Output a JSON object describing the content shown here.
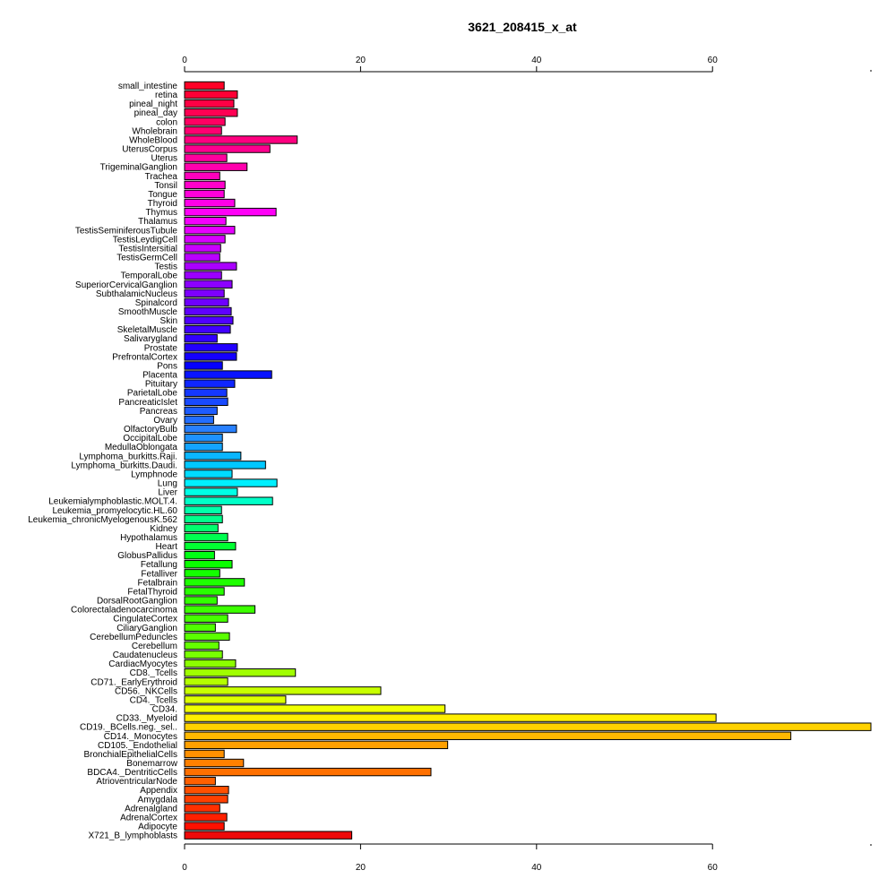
{
  "chart_data": {
    "type": "bar",
    "orientation": "horizontal",
    "title": "3621_208415_x_at",
    "xlabel": "",
    "ylabel": "",
    "xlim": [
      0,
      78
    ],
    "x_ticks": [
      0,
      20,
      40,
      60
    ],
    "x_tick_labels": [
      "0",
      "20",
      "40",
      "60"
    ],
    "grid": false,
    "legend": "none",
    "bar_outline_color": "#000000",
    "bars": [
      {
        "category": "small_intestine",
        "value": 4.5,
        "color": "#ff0026"
      },
      {
        "category": "retina",
        "value": 6.0,
        "color": "#ff0035"
      },
      {
        "category": "pineal_night",
        "value": 5.6,
        "color": "#ff0044"
      },
      {
        "category": "pineal_day",
        "value": 6.0,
        "color": "#ff0053"
      },
      {
        "category": "colon",
        "value": 4.6,
        "color": "#ff0062"
      },
      {
        "category": "Wholebrain",
        "value": 4.2,
        "color": "#ff0071"
      },
      {
        "category": "WholeBlood",
        "value": 12.8,
        "color": "#ff0080"
      },
      {
        "category": "UterusCorpus",
        "value": 9.7,
        "color": "#ff008f"
      },
      {
        "category": "Uterus",
        "value": 4.8,
        "color": "#ff009e"
      },
      {
        "category": "TrigeminalGanglion",
        "value": 7.1,
        "color": "#ff00ad"
      },
      {
        "category": "Trachea",
        "value": 4.0,
        "color": "#ff00bc"
      },
      {
        "category": "Tonsil",
        "value": 4.6,
        "color": "#ff00cb"
      },
      {
        "category": "Tongue",
        "value": 4.5,
        "color": "#ff00da"
      },
      {
        "category": "Thyroid",
        "value": 5.7,
        "color": "#ff00e9"
      },
      {
        "category": "Thymus",
        "value": 10.4,
        "color": "#ff00f8"
      },
      {
        "category": "Thalamus",
        "value": 4.7,
        "color": "#f500ff"
      },
      {
        "category": "TestisSeminiferousTubule",
        "value": 5.7,
        "color": "#e600ff"
      },
      {
        "category": "TestisLeydigCell",
        "value": 4.6,
        "color": "#d700ff"
      },
      {
        "category": "TestisIntersitial",
        "value": 4.1,
        "color": "#c800ff"
      },
      {
        "category": "TestisGermCell",
        "value": 4.0,
        "color": "#b900ff"
      },
      {
        "category": "Testis",
        "value": 5.9,
        "color": "#aa00ff"
      },
      {
        "category": "TemporalLobe",
        "value": 4.2,
        "color": "#9b00ff"
      },
      {
        "category": "SuperiorCervicalGanglion",
        "value": 5.4,
        "color": "#8c00ff"
      },
      {
        "category": "SubthalamicNucleus",
        "value": 4.5,
        "color": "#7d00ff"
      },
      {
        "category": "Spinalcord",
        "value": 5.0,
        "color": "#6e00ff"
      },
      {
        "category": "SmoothMuscle",
        "value": 5.3,
        "color": "#5f00ff"
      },
      {
        "category": "Skin",
        "value": 5.5,
        "color": "#5000ff"
      },
      {
        "category": "SkeletalMuscle",
        "value": 5.2,
        "color": "#4100ff"
      },
      {
        "category": "Salivarygland",
        "value": 3.7,
        "color": "#3200ff"
      },
      {
        "category": "Prostate",
        "value": 6.0,
        "color": "#2300ff"
      },
      {
        "category": "PrefrontalCortex",
        "value": 5.9,
        "color": "#1400ff"
      },
      {
        "category": "Pons",
        "value": 4.3,
        "color": "#0500ff"
      },
      {
        "category": "Placenta",
        "value": 9.9,
        "color": "#0a14ff"
      },
      {
        "category": "Pituitary",
        "value": 5.7,
        "color": "#0f26ff"
      },
      {
        "category": "ParietalLobe",
        "value": 4.8,
        "color": "#1438ff"
      },
      {
        "category": "PancreaticIslet",
        "value": 4.9,
        "color": "#194aff"
      },
      {
        "category": "Pancreas",
        "value": 3.7,
        "color": "#1e5cff"
      },
      {
        "category": "Ovary",
        "value": 3.3,
        "color": "#236eff"
      },
      {
        "category": "OlfactoryBulb",
        "value": 5.9,
        "color": "#2880ff"
      },
      {
        "category": "OccipitalLobe",
        "value": 4.3,
        "color": "#1e92ff"
      },
      {
        "category": "MedullaOblongata",
        "value": 4.3,
        "color": "#14a4ff"
      },
      {
        "category": "Lymphoma_burkitts.Raji.",
        "value": 6.4,
        "color": "#0ab6ff"
      },
      {
        "category": "Lymphoma_burkitts.Daudi.",
        "value": 9.2,
        "color": "#00c8ff"
      },
      {
        "category": "Lymphnode",
        "value": 5.4,
        "color": "#00dcff"
      },
      {
        "category": "Lung",
        "value": 10.5,
        "color": "#00f0ff"
      },
      {
        "category": "Liver",
        "value": 6.0,
        "color": "#00ffe6"
      },
      {
        "category": "Leukemialymphoblastic.MOLT.4.",
        "value": 10.0,
        "color": "#00ffc8"
      },
      {
        "category": "Leukemia_promyelocytic.HL.60",
        "value": 4.2,
        "color": "#00ffaa"
      },
      {
        "category": "Leukemia_chronicMyelogenousK.562",
        "value": 4.3,
        "color": "#00ff8c"
      },
      {
        "category": "Kidney",
        "value": 3.8,
        "color": "#00ff6e"
      },
      {
        "category": "Hypothalamus",
        "value": 4.9,
        "color": "#00ff50"
      },
      {
        "category": "Heart",
        "value": 5.8,
        "color": "#00ff32"
      },
      {
        "category": "GlobusPallidus",
        "value": 3.4,
        "color": "#00ff14"
      },
      {
        "category": "Fetallung",
        "value": 5.4,
        "color": "#0aff00"
      },
      {
        "category": "Fetalliver",
        "value": 4.0,
        "color": "#14ff00"
      },
      {
        "category": "Fetalbrain",
        "value": 6.8,
        "color": "#1eff00"
      },
      {
        "category": "FetalThyroid",
        "value": 4.5,
        "color": "#28ff00"
      },
      {
        "category": "DorsalRootGanglion",
        "value": 3.7,
        "color": "#32ff00"
      },
      {
        "category": "Colorectaladenocarcinoma",
        "value": 8.0,
        "color": "#3cff00"
      },
      {
        "category": "CingulateCortex",
        "value": 4.9,
        "color": "#46ff00"
      },
      {
        "category": "CiliaryGanglion",
        "value": 3.5,
        "color": "#50ff00"
      },
      {
        "category": "CerebellumPeduncles",
        "value": 5.1,
        "color": "#5aff00"
      },
      {
        "category": "Cerebellum",
        "value": 3.9,
        "color": "#64ff00"
      },
      {
        "category": "Caudatenucleus",
        "value": 4.3,
        "color": "#78ff00"
      },
      {
        "category": "CardiacMyocytes",
        "value": 5.8,
        "color": "#8cff00"
      },
      {
        "category": "CD8._Tcells",
        "value": 12.6,
        "color": "#a0ff00"
      },
      {
        "category": "CD71._EarlyErythroid",
        "value": 4.9,
        "color": "#b4ff00"
      },
      {
        "category": "CD56._NKCells",
        "value": 22.3,
        "color": "#c8ff00"
      },
      {
        "category": "CD4._Tcells",
        "value": 11.5,
        "color": "#dcff00"
      },
      {
        "category": "CD34.",
        "value": 29.6,
        "color": "#f0ff00"
      },
      {
        "category": "CD33._Myeloid",
        "value": 60.4,
        "color": "#ffee00"
      },
      {
        "category": "CD19._BCells.neg._sel..",
        "value": 78.0,
        "color": "#ffd200"
      },
      {
        "category": "CD14._Monocytes",
        "value": 68.9,
        "color": "#ffb900"
      },
      {
        "category": "CD105._Endothelial",
        "value": 29.9,
        "color": "#ffa000"
      },
      {
        "category": "BronchialEpithelialCells",
        "value": 4.5,
        "color": "#ff9000"
      },
      {
        "category": "Bonemarrow",
        "value": 6.7,
        "color": "#ff8000"
      },
      {
        "category": "BDCA4._DentriticCells",
        "value": 28.0,
        "color": "#ff7000"
      },
      {
        "category": "AtrioventricularNode",
        "value": 3.5,
        "color": "#ff6000"
      },
      {
        "category": "Appendix",
        "value": 5.0,
        "color": "#ff5000"
      },
      {
        "category": "Amygdala",
        "value": 4.9,
        "color": "#ff4000"
      },
      {
        "category": "Adrenalgland",
        "value": 4.0,
        "color": "#ff3000"
      },
      {
        "category": "AdrenalCortex",
        "value": 4.8,
        "color": "#ff2000"
      },
      {
        "category": "Adipocyte",
        "value": 4.5,
        "color": "#ff1000"
      },
      {
        "category": "X721_B_lymphoblasts",
        "value": 19.0,
        "color": "#ee0a0a"
      }
    ]
  }
}
